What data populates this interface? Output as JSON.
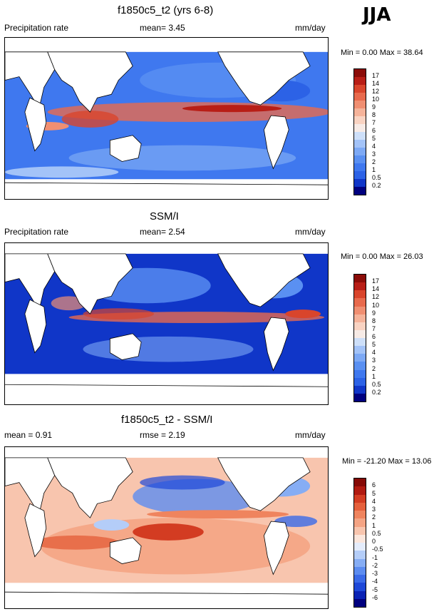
{
  "season": "JJA",
  "panels": [
    {
      "title": "f1850c5_t2 (yrs 6-8)",
      "left_label": "Precipitation rate",
      "mid_label": "mean=   3.45",
      "right_label": "mm/day",
      "minmax": "Min =    0.00 Max =  38.64",
      "palette": [
        "#00007f",
        "#1036c8",
        "#2c62e6",
        "#3f78ef",
        "#5a90f2",
        "#7da9f5",
        "#a3c3f8",
        "#cddff9",
        "#f7ebe6",
        "#f9d3c2",
        "#f5b39a",
        "#f08f72",
        "#e86a4d",
        "#d9452c",
        "#b81e16",
        "#8b0c08"
      ],
      "levels": [
        "0.2",
        "0.5",
        "1",
        "2",
        "3",
        "4",
        "5",
        "6",
        "7",
        "8",
        "9",
        "10",
        "12",
        "14",
        "17"
      ]
    },
    {
      "title": "SSM/I",
      "left_label": "Precipitation rate",
      "mid_label": "mean=   2.54",
      "right_label": "mm/day",
      "minmax": "Min =    0.00 Max =  26.03",
      "palette": [
        "#00007f",
        "#1036c8",
        "#2c62e6",
        "#3f78ef",
        "#5a90f2",
        "#7da9f5",
        "#a3c3f8",
        "#cddff9",
        "#f7ebe6",
        "#f9d3c2",
        "#f5b39a",
        "#f08f72",
        "#e86a4d",
        "#d9452c",
        "#b81e16",
        "#8b0c08"
      ],
      "levels": [
        "0.2",
        "0.5",
        "1",
        "2",
        "3",
        "4",
        "5",
        "6",
        "7",
        "8",
        "9",
        "10",
        "12",
        "14",
        "17"
      ]
    },
    {
      "title": "f1850c5_t2 - SSM/I",
      "left_label": "mean =   0.91",
      "mid_label": "rmse =   2.19",
      "right_label": "mm/day",
      "minmax": "Min = -21.20 Max =  13.06",
      "palette": [
        "#00007f",
        "#0a22b4",
        "#1e48d8",
        "#3a6ae8",
        "#5c8cf0",
        "#86adf4",
        "#b4cdf8",
        "#e4ecfb",
        "#fbe6dc",
        "#f8c5ae",
        "#f4a484",
        "#ef845e",
        "#e5603c",
        "#d33c22",
        "#b01a10",
        "#850a06"
      ],
      "levels": [
        "-6",
        "-5",
        "-4",
        "-3",
        "-2",
        "-1",
        "-0.5",
        "0",
        "0.5",
        "1",
        "2",
        "3",
        "4",
        "5",
        "6"
      ]
    }
  ],
  "chart_data": [
    {
      "type": "heatmap",
      "title": "f1850c5_t2 (yrs 6-8)",
      "variable": "Precipitation rate",
      "units": "mm/day",
      "season": "JJA",
      "mean": 3.45,
      "min": 0.0,
      "max": 38.64,
      "contour_levels": [
        0.2,
        0.5,
        1,
        2,
        3,
        4,
        5,
        6,
        7,
        8,
        9,
        10,
        12,
        14,
        17
      ]
    },
    {
      "type": "heatmap",
      "title": "SSM/I",
      "variable": "Precipitation rate",
      "units": "mm/day",
      "season": "JJA",
      "mean": 2.54,
      "min": 0.0,
      "max": 26.03,
      "contour_levels": [
        0.2,
        0.5,
        1,
        2,
        3,
        4,
        5,
        6,
        7,
        8,
        9,
        10,
        12,
        14,
        17
      ]
    },
    {
      "type": "heatmap",
      "title": "f1850c5_t2 - SSM/I",
      "variable": "Precipitation rate difference",
      "units": "mm/day",
      "season": "JJA",
      "mean": 0.91,
      "rmse": 2.19,
      "min": -21.2,
      "max": 13.06,
      "contour_levels": [
        -6,
        -5,
        -4,
        -3,
        -2,
        -1,
        -0.5,
        0,
        0.5,
        1,
        2,
        3,
        4,
        5,
        6
      ]
    }
  ]
}
